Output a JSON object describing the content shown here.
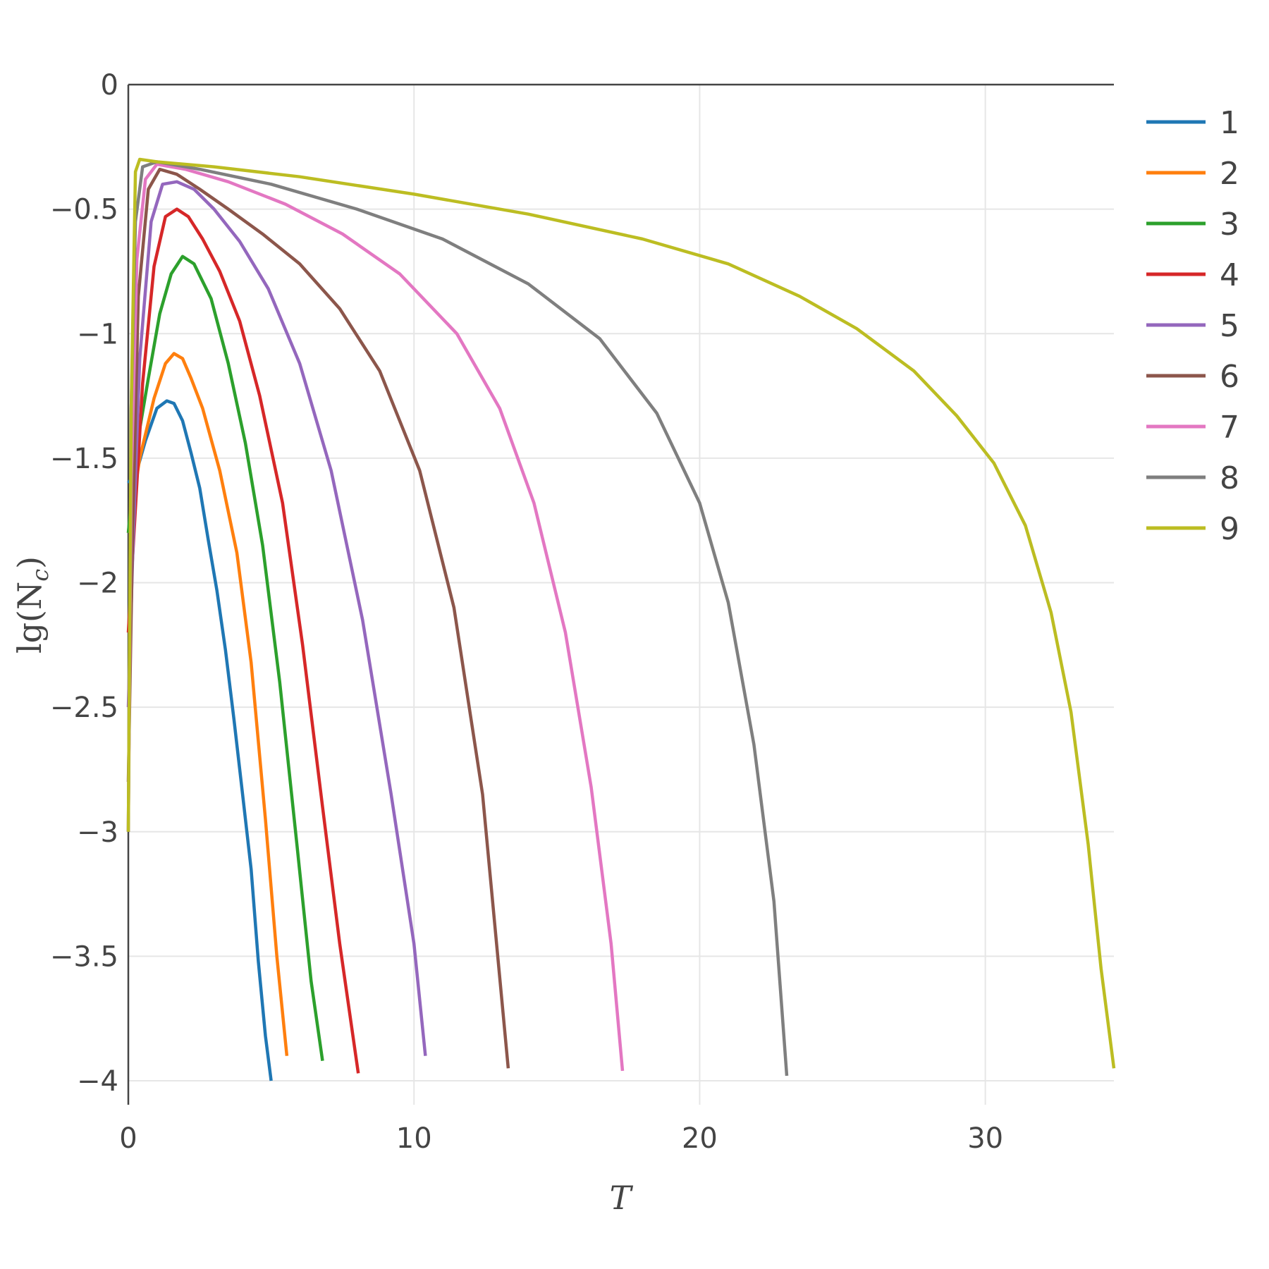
{
  "chart_data": {
    "type": "line",
    "xlabel": "T",
    "ylabel": "lg(N",
    "ylabel_sub": "c",
    "ylabel_close": ")",
    "xlim": [
      0,
      34.5
    ],
    "ylim": [
      -4.1,
      0
    ],
    "xticks": [
      0,
      10,
      20,
      30
    ],
    "xtick_labels": [
      "0",
      "10",
      "20",
      "30"
    ],
    "yticks": [
      0,
      -0.5,
      -1,
      -1.5,
      -2,
      -2.5,
      -3,
      -3.5,
      -4
    ],
    "ytick_labels": [
      "0",
      "−0.5",
      "−1",
      "−1.5",
      "−2",
      "−2.5",
      "−3",
      "−3.5",
      "−4"
    ],
    "grid": true,
    "legend_position": "right",
    "series": [
      {
        "name": "1",
        "color": "#1f77b4",
        "x": [
          0,
          0.3,
          0.6,
          1.0,
          1.35,
          1.6,
          1.9,
          2.2,
          2.5,
          2.8,
          3.1,
          3.4,
          3.7,
          4.0,
          4.3,
          4.55,
          4.8,
          5.0
        ],
        "y": [
          -1.6,
          -1.55,
          -1.43,
          -1.3,
          -1.27,
          -1.28,
          -1.35,
          -1.48,
          -1.62,
          -1.83,
          -2.03,
          -2.27,
          -2.55,
          -2.85,
          -3.15,
          -3.52,
          -3.82,
          -4.0
        ]
      },
      {
        "name": "2",
        "color": "#ff7f0e",
        "x": [
          0,
          0.4,
          0.9,
          1.3,
          1.6,
          1.9,
          2.2,
          2.6,
          3.2,
          3.8,
          4.3,
          4.8,
          5.2,
          5.55
        ],
        "y": [
          -1.8,
          -1.5,
          -1.26,
          -1.12,
          -1.08,
          -1.1,
          -1.18,
          -1.3,
          -1.55,
          -1.88,
          -2.32,
          -2.95,
          -3.5,
          -3.9
        ]
      },
      {
        "name": "3",
        "color": "#2ca02c",
        "x": [
          0,
          0.3,
          0.7,
          1.1,
          1.5,
          1.9,
          2.3,
          2.9,
          3.5,
          4.1,
          4.7,
          5.3,
          5.9,
          6.4,
          6.8
        ],
        "y": [
          -1.8,
          -1.45,
          -1.18,
          -0.92,
          -0.76,
          -0.69,
          -0.72,
          -0.86,
          -1.12,
          -1.44,
          -1.85,
          -2.4,
          -3.05,
          -3.6,
          -3.92
        ]
      },
      {
        "name": "4",
        "color": "#d62728",
        "x": [
          0,
          0.2,
          0.5,
          0.9,
          1.3,
          1.7,
          2.1,
          2.6,
          3.2,
          3.9,
          4.6,
          5.4,
          6.1,
          6.8,
          7.4,
          8.05
        ],
        "y": [
          -2.2,
          -1.8,
          -1.2,
          -0.73,
          -0.53,
          -0.5,
          -0.53,
          -0.62,
          -0.75,
          -0.95,
          -1.25,
          -1.68,
          -2.25,
          -2.9,
          -3.45,
          -3.97
        ]
      },
      {
        "name": "5",
        "color": "#9467bd",
        "x": [
          0,
          0.15,
          0.4,
          0.8,
          1.2,
          1.7,
          2.3,
          3.0,
          3.9,
          4.9,
          6.0,
          7.1,
          8.2,
          9.2,
          10.0,
          10.4
        ],
        "y": [
          -2.5,
          -1.9,
          -1.1,
          -0.55,
          -0.4,
          -0.39,
          -0.42,
          -0.5,
          -0.63,
          -0.82,
          -1.12,
          -1.55,
          -2.15,
          -2.85,
          -3.45,
          -3.9
        ]
      },
      {
        "name": "6",
        "color": "#8c564b",
        "x": [
          0,
          0.15,
          0.35,
          0.7,
          1.1,
          1.7,
          2.5,
          3.5,
          4.7,
          6.0,
          7.4,
          8.8,
          10.2,
          11.4,
          12.4,
          13.3
        ],
        "y": [
          -2.8,
          -1.8,
          -0.85,
          -0.42,
          -0.34,
          -0.36,
          -0.42,
          -0.5,
          -0.6,
          -0.72,
          -0.9,
          -1.15,
          -1.55,
          -2.1,
          -2.85,
          -3.95
        ]
      },
      {
        "name": "7",
        "color": "#e377c2",
        "x": [
          0,
          0.1,
          0.3,
          0.6,
          1.0,
          2.0,
          3.5,
          5.5,
          7.5,
          9.5,
          11.5,
          13.0,
          14.2,
          15.3,
          16.2,
          16.9,
          17.3
        ],
        "y": [
          -3.0,
          -1.6,
          -0.7,
          -0.38,
          -0.32,
          -0.34,
          -0.39,
          -0.48,
          -0.6,
          -0.76,
          -1.0,
          -1.3,
          -1.68,
          -2.2,
          -2.82,
          -3.45,
          -3.96
        ]
      },
      {
        "name": "8",
        "color": "#7f7f7f",
        "x": [
          0,
          0.1,
          0.25,
          0.5,
          1.0,
          2.5,
          5.0,
          8.0,
          11.0,
          14.0,
          16.5,
          18.5,
          20.0,
          21.0,
          21.9,
          22.6,
          23.05
        ],
        "y": [
          -3.0,
          -1.3,
          -0.55,
          -0.33,
          -0.31,
          -0.34,
          -0.4,
          -0.5,
          -0.62,
          -0.8,
          -1.02,
          -1.32,
          -1.68,
          -2.08,
          -2.65,
          -3.28,
          -3.98
        ]
      },
      {
        "name": "9",
        "color": "#bcbd22",
        "x": [
          0,
          0.1,
          0.25,
          0.4,
          1.0,
          3.0,
          6.0,
          10.0,
          14.0,
          18.0,
          21.0,
          23.5,
          25.5,
          27.5,
          29.0,
          30.3,
          31.4,
          32.3,
          33.0,
          33.6,
          34.05,
          34.5
        ],
        "y": [
          -3.0,
          -1.3,
          -0.35,
          -0.3,
          -0.31,
          -0.33,
          -0.37,
          -0.44,
          -0.52,
          -0.62,
          -0.72,
          -0.85,
          -0.98,
          -1.15,
          -1.33,
          -1.52,
          -1.77,
          -2.12,
          -2.52,
          -3.05,
          -3.55,
          -3.95
        ]
      }
    ]
  }
}
